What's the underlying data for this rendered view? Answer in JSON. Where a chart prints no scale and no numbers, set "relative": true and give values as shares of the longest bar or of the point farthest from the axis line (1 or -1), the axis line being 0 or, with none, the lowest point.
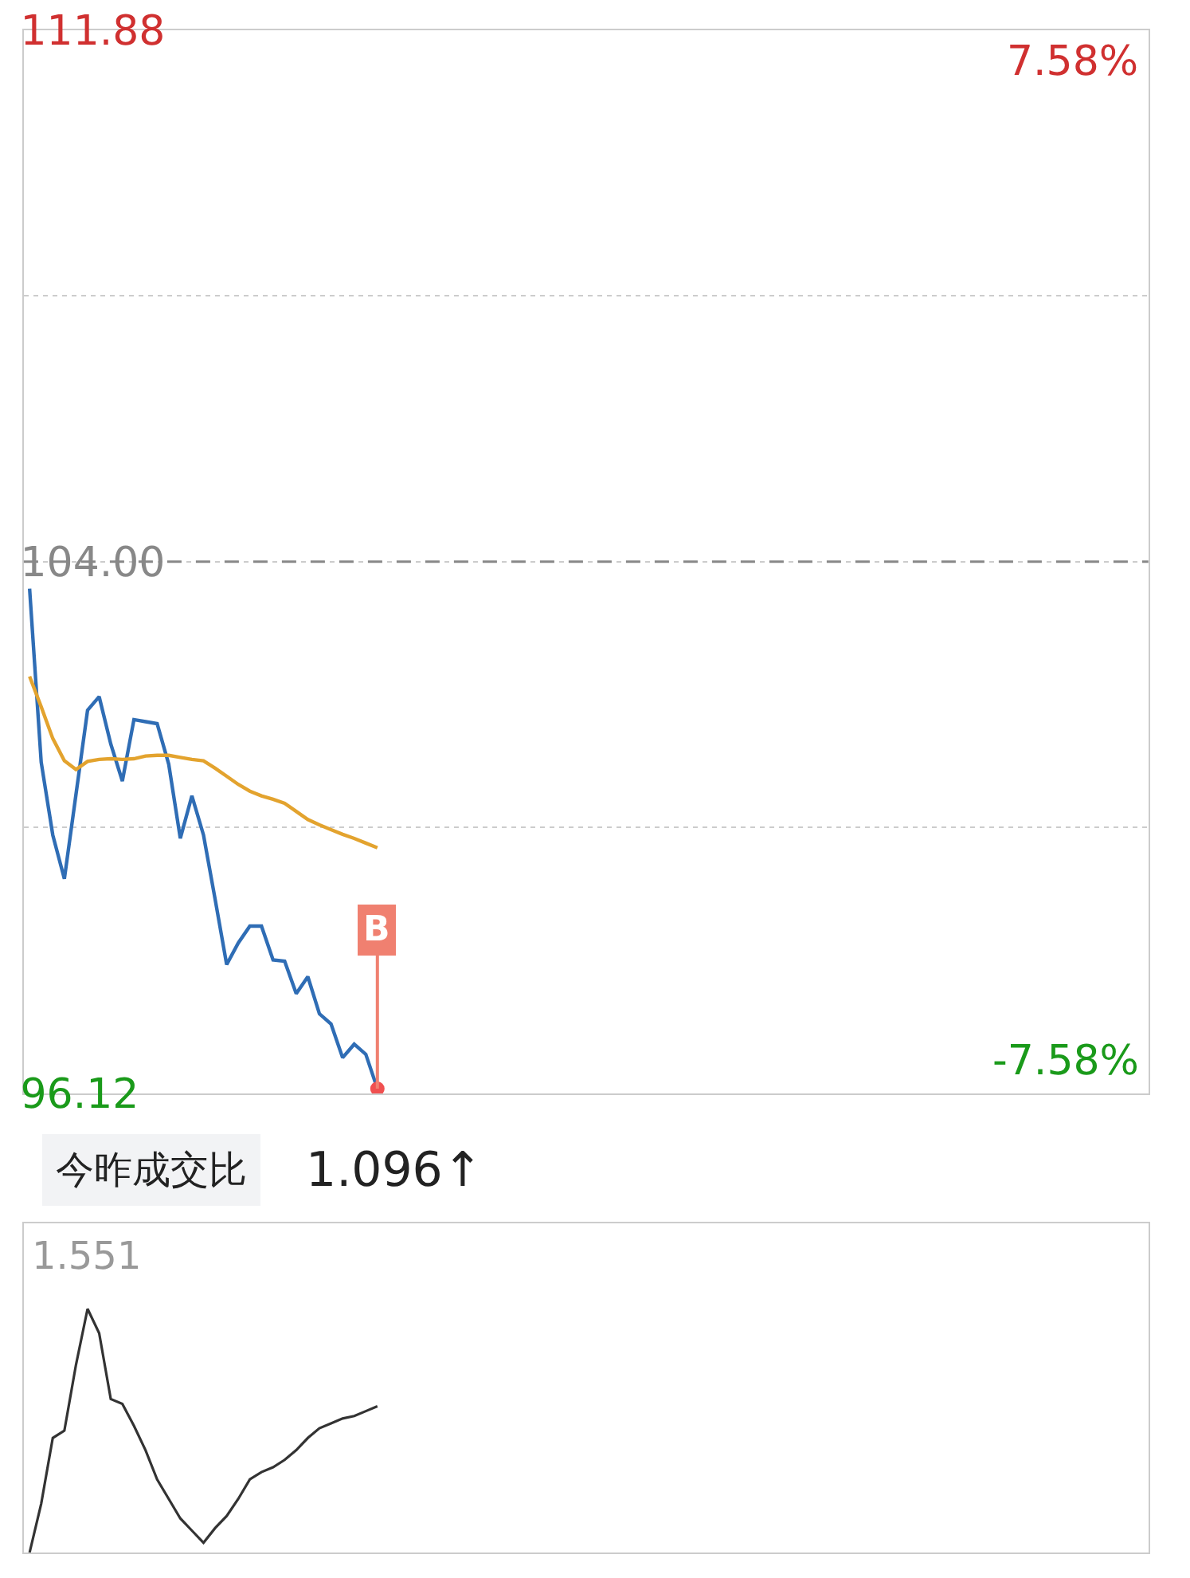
{
  "chart_data": [
    {
      "type": "line",
      "categories": [
        null,
        null,
        null,
        null,
        null,
        null,
        null,
        null,
        null,
        null,
        null,
        null,
        null,
        null,
        null,
        null,
        null,
        null,
        null,
        null,
        null,
        null,
        null,
        null,
        null,
        null,
        null,
        null,
        null,
        null,
        null,
        null,
        null,
        null,
        null,
        null,
        null,
        null,
        null,
        null,
        null,
        null,
        null,
        null,
        null,
        null,
        null,
        null,
        null,
        null,
        null,
        null,
        null,
        null,
        null,
        null,
        null,
        null,
        null,
        null,
        null,
        null,
        null,
        null,
        null,
        null,
        null,
        null,
        null,
        null,
        null,
        null,
        null,
        null,
        null,
        null,
        null,
        null,
        null,
        null,
        null,
        null,
        null,
        null,
        null,
        null,
        null,
        null,
        null,
        null,
        null,
        null,
        null,
        null,
        null,
        null,
        null
      ],
      "ylim": [
        96.12,
        111.88
      ],
      "yticks": [
        {
          "value": 96.12,
          "label": "96.12"
        },
        {
          "value": 100.06,
          "label": null
        },
        {
          "value": 104.0,
          "label": "104.00"
        },
        {
          "value": 107.94,
          "label": null
        },
        {
          "value": 111.88,
          "label": "111.88"
        }
      ],
      "grid": "y",
      "tick_labels": "y",
      "line_style": "solid",
      "marker": "none",
      "ref_lines": [
        {
          "axis": "y",
          "value": 104.0,
          "color": "#888888",
          "line_style": "dashed"
        }
      ],
      "annotations": [
        {
          "text": "B",
          "y": 96.19
        },
        "7.58%",
        "-7.58%"
      ],
      "series": [
        {
          "color": "#2f6db5",
          "values": [
            103.6,
            101.03,
            99.95,
            99.3,
            100.55,
            101.8,
            102.0,
            101.3,
            100.75,
            101.66,
            101.63,
            101.6,
            101.0,
            99.9,
            100.53,
            99.95,
            99.0,
            98.03,
            98.35,
            98.6,
            98.6,
            98.1,
            98.08,
            97.6,
            97.85,
            97.3,
            97.15,
            96.65,
            96.85,
            96.7,
            96.19,
            null,
            null,
            null,
            null,
            null,
            null,
            null,
            null,
            null,
            null,
            null,
            null,
            null,
            null,
            null,
            null,
            null,
            null,
            null,
            null,
            null,
            null,
            null,
            null,
            null,
            null,
            null,
            null,
            null,
            null,
            null,
            null,
            null,
            null,
            null,
            null,
            null,
            null,
            null,
            null,
            null,
            null,
            null,
            null,
            null,
            null,
            null,
            null,
            null,
            null,
            null,
            null,
            null,
            null,
            null,
            null,
            null,
            null,
            null,
            null,
            null,
            null,
            null,
            null,
            null,
            null
          ]
        },
        {
          "color": "#e3a32e",
          "values": [
            102.3,
            101.85,
            101.38,
            101.05,
            100.92,
            101.04,
            101.07,
            101.08,
            101.07,
            101.08,
            101.12,
            101.13,
            101.13,
            101.1,
            101.07,
            101.05,
            100.94,
            100.82,
            100.7,
            100.6,
            100.53,
            100.48,
            100.42,
            100.3,
            100.18,
            100.1,
            100.03,
            99.96,
            99.9,
            99.83,
            99.76,
            null,
            null,
            null,
            null,
            null,
            null,
            null,
            null,
            null,
            null,
            null,
            null,
            null,
            null,
            null,
            null,
            null,
            null,
            null,
            null,
            null,
            null,
            null,
            null,
            null,
            null,
            null,
            null,
            null,
            null,
            null,
            null,
            null,
            null,
            null,
            null,
            null,
            null,
            null,
            null,
            null,
            null,
            null,
            null,
            null,
            null,
            null,
            null,
            null,
            null,
            null,
            null,
            null,
            null,
            null,
            null,
            null,
            null,
            null,
            null,
            null,
            null,
            null,
            null,
            null,
            null
          ]
        }
      ]
    },
    {
      "type": "line",
      "title": "今昨成交比",
      "relative": true,
      "categories": [
        null,
        null,
        null,
        null,
        null,
        null,
        null,
        null,
        null,
        null,
        null,
        null,
        null,
        null,
        null,
        null,
        null,
        null,
        null,
        null,
        null,
        null,
        null,
        null,
        null,
        null,
        null,
        null,
        null,
        null,
        null,
        null,
        null,
        null,
        null,
        null,
        null,
        null,
        null,
        null,
        null,
        null,
        null,
        null,
        null,
        null,
        null,
        null,
        null,
        null,
        null,
        null,
        null,
        null,
        null,
        null,
        null,
        null,
        null,
        null,
        null,
        null,
        null,
        null,
        null,
        null,
        null,
        null,
        null,
        null,
        null,
        null,
        null,
        null,
        null,
        null,
        null,
        null,
        null,
        null,
        null,
        null,
        null,
        null,
        null,
        null,
        null,
        null,
        null,
        null,
        null,
        null,
        null,
        null,
        null,
        null,
        null
      ],
      "tick_labels": false,
      "line_style": "solid",
      "marker": "none",
      "annotations": [
        "1.551",
        "1.096↑"
      ],
      "series": [
        {
          "color": "#333333",
          "values": [
            0,
            0.2,
            0.47,
            0.5,
            0.77,
            1.0,
            0.9,
            0.63,
            0.61,
            0.52,
            0.42,
            0.3,
            0.22,
            0.14,
            0.09,
            0.04,
            0.1,
            0.15,
            0.22,
            0.3,
            0.33,
            0.35,
            0.38,
            0.42,
            0.47,
            0.51,
            0.53,
            0.55,
            0.56,
            0.58,
            0.6,
            null,
            null,
            null,
            null,
            null,
            null,
            null,
            null,
            null,
            null,
            null,
            null,
            null,
            null,
            null,
            null,
            null,
            null,
            null,
            null,
            null,
            null,
            null,
            null,
            null,
            null,
            null,
            null,
            null,
            null,
            null,
            null,
            null,
            null,
            null,
            null,
            null,
            null,
            null,
            null,
            null,
            null,
            null,
            null,
            null,
            null,
            null,
            null,
            null,
            null,
            null,
            null,
            null,
            null,
            null,
            null,
            null,
            null,
            null,
            null,
            null,
            null,
            null,
            null,
            null,
            null
          ]
        }
      ]
    }
  ]
}
